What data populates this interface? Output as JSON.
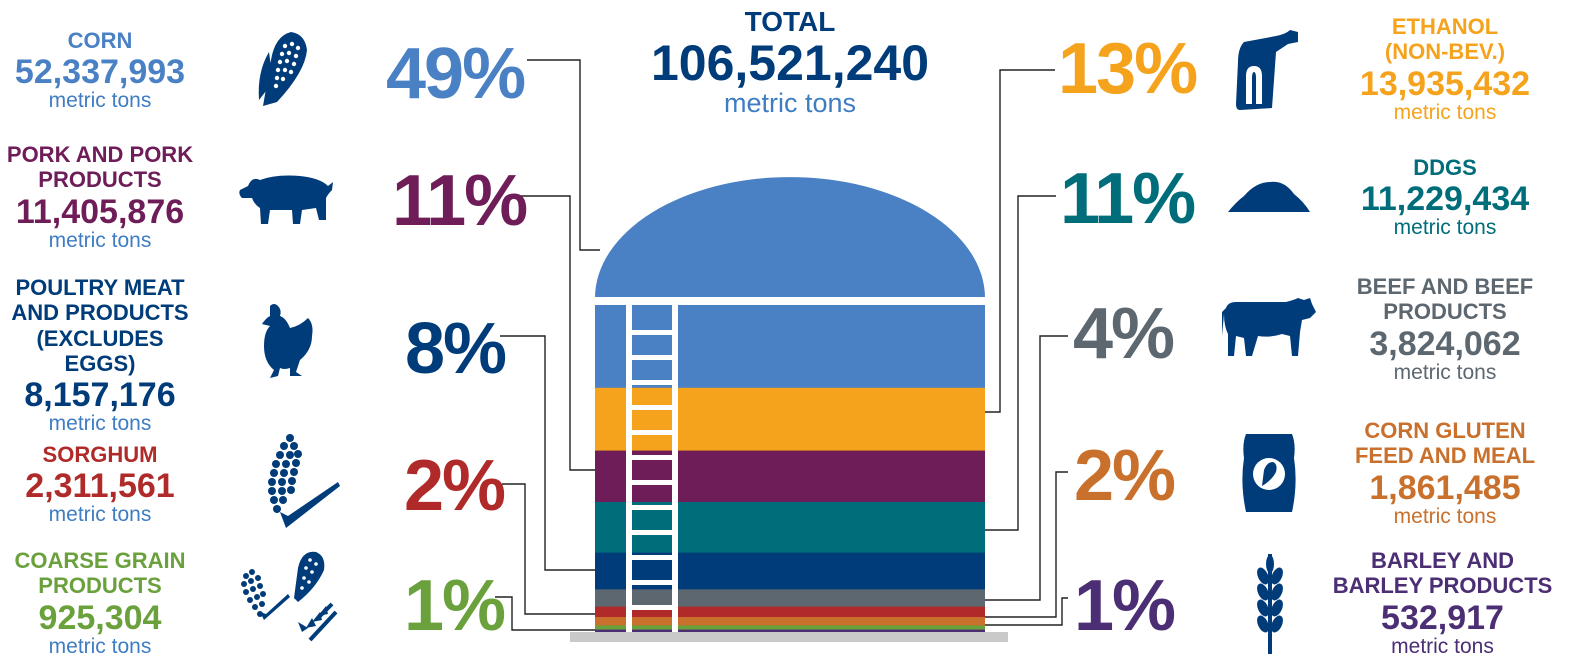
{
  "total": {
    "label": "TOTAL",
    "value": "106,521,240",
    "unit": "metric tons"
  },
  "colors": {
    "corn": "#4a80c4",
    "pork": "#6e1d58",
    "poultry": "#003b7a",
    "sorghum": "#b02a2a",
    "coarse": "#6aa13c",
    "ethanol": "#f5a31d",
    "ddgs": "#006e7a",
    "beef": "#5d6770",
    "gluten": "#c8702c",
    "barley": "#4b2e73",
    "unit": "#3f7dc3",
    "base": "#c9c9c9"
  },
  "left": [
    {
      "key": "corn",
      "label_lines": [
        "CORN"
      ],
      "value": "52,337,993",
      "unit": "metric tons",
      "pct": "49%",
      "icon": "corn-icon"
    },
    {
      "key": "pork",
      "label_lines": [
        "PORK AND PORK",
        "PRODUCTS"
      ],
      "value": "11,405,876",
      "unit": "metric tons",
      "pct": "11%",
      "icon": "pig-icon"
    },
    {
      "key": "poultry",
      "label_lines": [
        "POULTRY MEAT",
        "AND PRODUCTS",
        "(EXCLUDES EGGS)"
      ],
      "value": "8,157,176",
      "unit": "metric tons",
      "pct": "8%",
      "icon": "chicken-icon"
    },
    {
      "key": "sorghum",
      "label_lines": [
        "SORGHUM"
      ],
      "value": "2,311,561",
      "unit": "metric tons",
      "pct": "2%",
      "icon": "sorghum-icon"
    },
    {
      "key": "coarse",
      "label_lines": [
        "COARSE GRAIN",
        "PRODUCTS"
      ],
      "value": "925,304",
      "unit": "metric tons",
      "pct": "1%",
      "icon": "coarse-grain-icon"
    }
  ],
  "right": [
    {
      "key": "ethanol",
      "label_lines": [
        "ETHANOL",
        "(NON-BEV.)"
      ],
      "value": "13,935,432",
      "unit": "metric tons",
      "pct": "13%",
      "icon": "fuel-pump-icon"
    },
    {
      "key": "ddgs",
      "label_lines": [
        "DDGS"
      ],
      "value": "11,229,434",
      "unit": "metric tons",
      "pct": "11%",
      "icon": "grain-pile-icon"
    },
    {
      "key": "beef",
      "label_lines": [
        "BEEF AND BEEF",
        "PRODUCTS"
      ],
      "value": "3,824,062",
      "unit": "metric tons",
      "pct": "4%",
      "icon": "cow-icon"
    },
    {
      "key": "gluten",
      "label_lines": [
        "CORN GLUTEN",
        "FEED AND MEAL"
      ],
      "value": "1,861,485",
      "unit": "metric tons",
      "pct": "2%",
      "icon": "feed-bag-icon"
    },
    {
      "key": "barley",
      "label_lines": [
        "BARLEY AND",
        "BARLEY PRODUCTS"
      ],
      "value": "532,917",
      "unit": "metric tons",
      "pct": "1%",
      "icon": "barley-icon"
    }
  ],
  "chart_data": {
    "type": "stacked-bar",
    "total": 106521240,
    "unit": "metric tons",
    "categories": [
      "Corn",
      "Ethanol (non-bev.)",
      "Pork and pork products",
      "DDGS",
      "Poultry meat and products (excludes eggs)",
      "Beef and beef products",
      "Sorghum",
      "Corn gluten feed and meal",
      "Coarse grain products",
      "Barley and barley products"
    ],
    "values": [
      52337993,
      13935432,
      11405876,
      11229434,
      8157176,
      3824062,
      2311561,
      1861485,
      925304,
      532917
    ],
    "percent_labels": [
      49,
      13,
      11,
      11,
      8,
      4,
      2,
      2,
      1,
      1
    ]
  }
}
